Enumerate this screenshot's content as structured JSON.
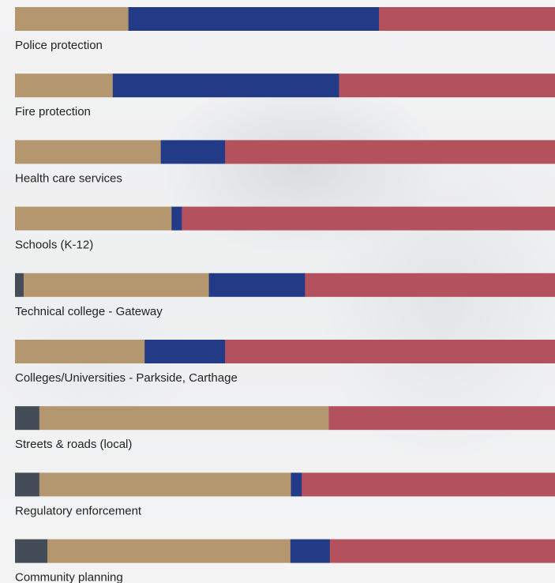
{
  "chart_data": {
    "type": "bar",
    "orientation": "horizontal",
    "stacked": "percent",
    "title": "",
    "xlabel": "",
    "ylabel": "",
    "xlim": [
      0,
      100
    ],
    "grid": false,
    "legend": "none",
    "categories": [
      "Police protection",
      "Fire protection",
      "Health care services",
      "Schools (K-12)",
      "Technical college - Gateway",
      "Colleges/Universities - Parkside, Carthage",
      "Streets & roads (local)",
      "Regulatory enforcement",
      "Community planning"
    ],
    "series": [
      {
        "color": "#434c57",
        "values": [
          0,
          0,
          0,
          0,
          1.6,
          0,
          4.5,
          4.5,
          6.0
        ]
      },
      {
        "color": "#b5976f",
        "values": [
          21.0,
          18.1,
          27.0,
          29.0,
          34.3,
          24.0,
          53.6,
          46.6,
          45.0
        ]
      },
      {
        "color": "#233b87",
        "values": [
          46.4,
          41.9,
          11.9,
          1.9,
          17.8,
          14.9,
          0,
          2.0,
          7.3
        ]
      },
      {
        "color": "#b3525c",
        "values": [
          32.6,
          40.0,
          61.1,
          69.1,
          46.3,
          61.1,
          41.9,
          46.9,
          41.7
        ]
      }
    ]
  }
}
